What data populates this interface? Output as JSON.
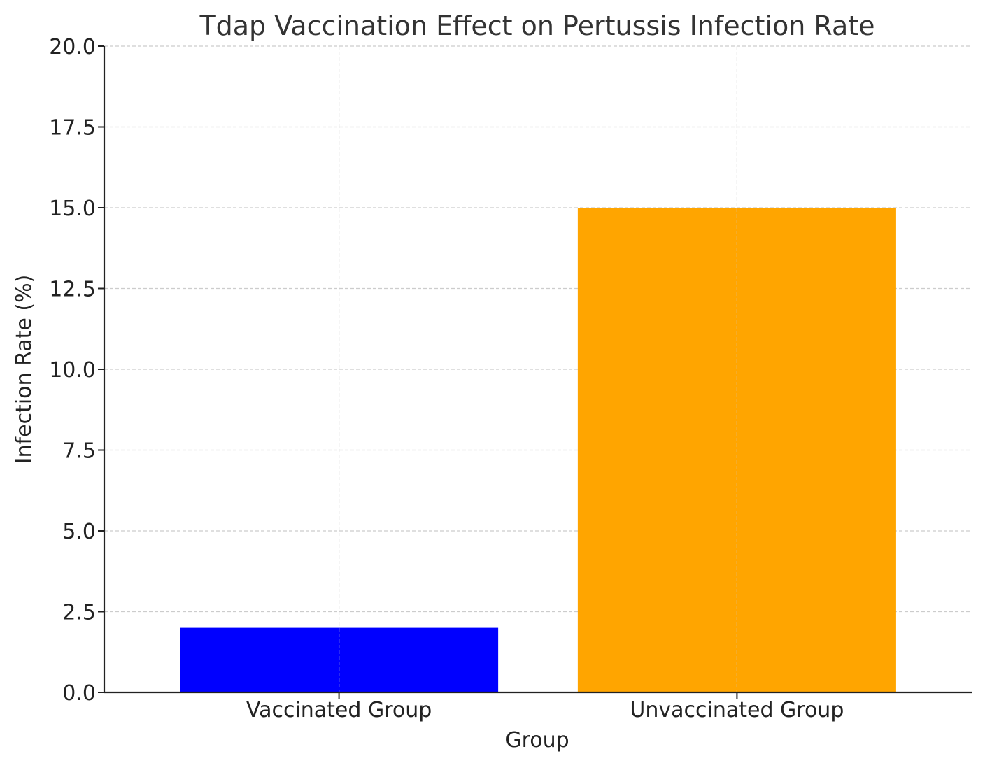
{
  "chart_data": {
    "type": "bar",
    "title": "Tdap Vaccination Effect on Pertussis Infection Rate",
    "xlabel": "Group",
    "ylabel": "Infection Rate (%)",
    "categories": [
      "Vaccinated Group",
      "Unvaccinated Group"
    ],
    "values": [
      2.0,
      15.0
    ],
    "colors": [
      "#0000ff",
      "#ffa500"
    ],
    "ylim": [
      0,
      20
    ],
    "yticks": [
      0.0,
      2.5,
      5.0,
      7.5,
      10.0,
      12.5,
      15.0,
      17.5,
      20.0
    ],
    "ytick_labels": [
      "0.0",
      "2.5",
      "5.0",
      "7.5",
      "10.0",
      "12.5",
      "15.0",
      "17.5",
      "20.0"
    ],
    "grid": true,
    "grid_color": "#cccccc",
    "axis_color": "#222222",
    "text_color": "#222222"
  }
}
